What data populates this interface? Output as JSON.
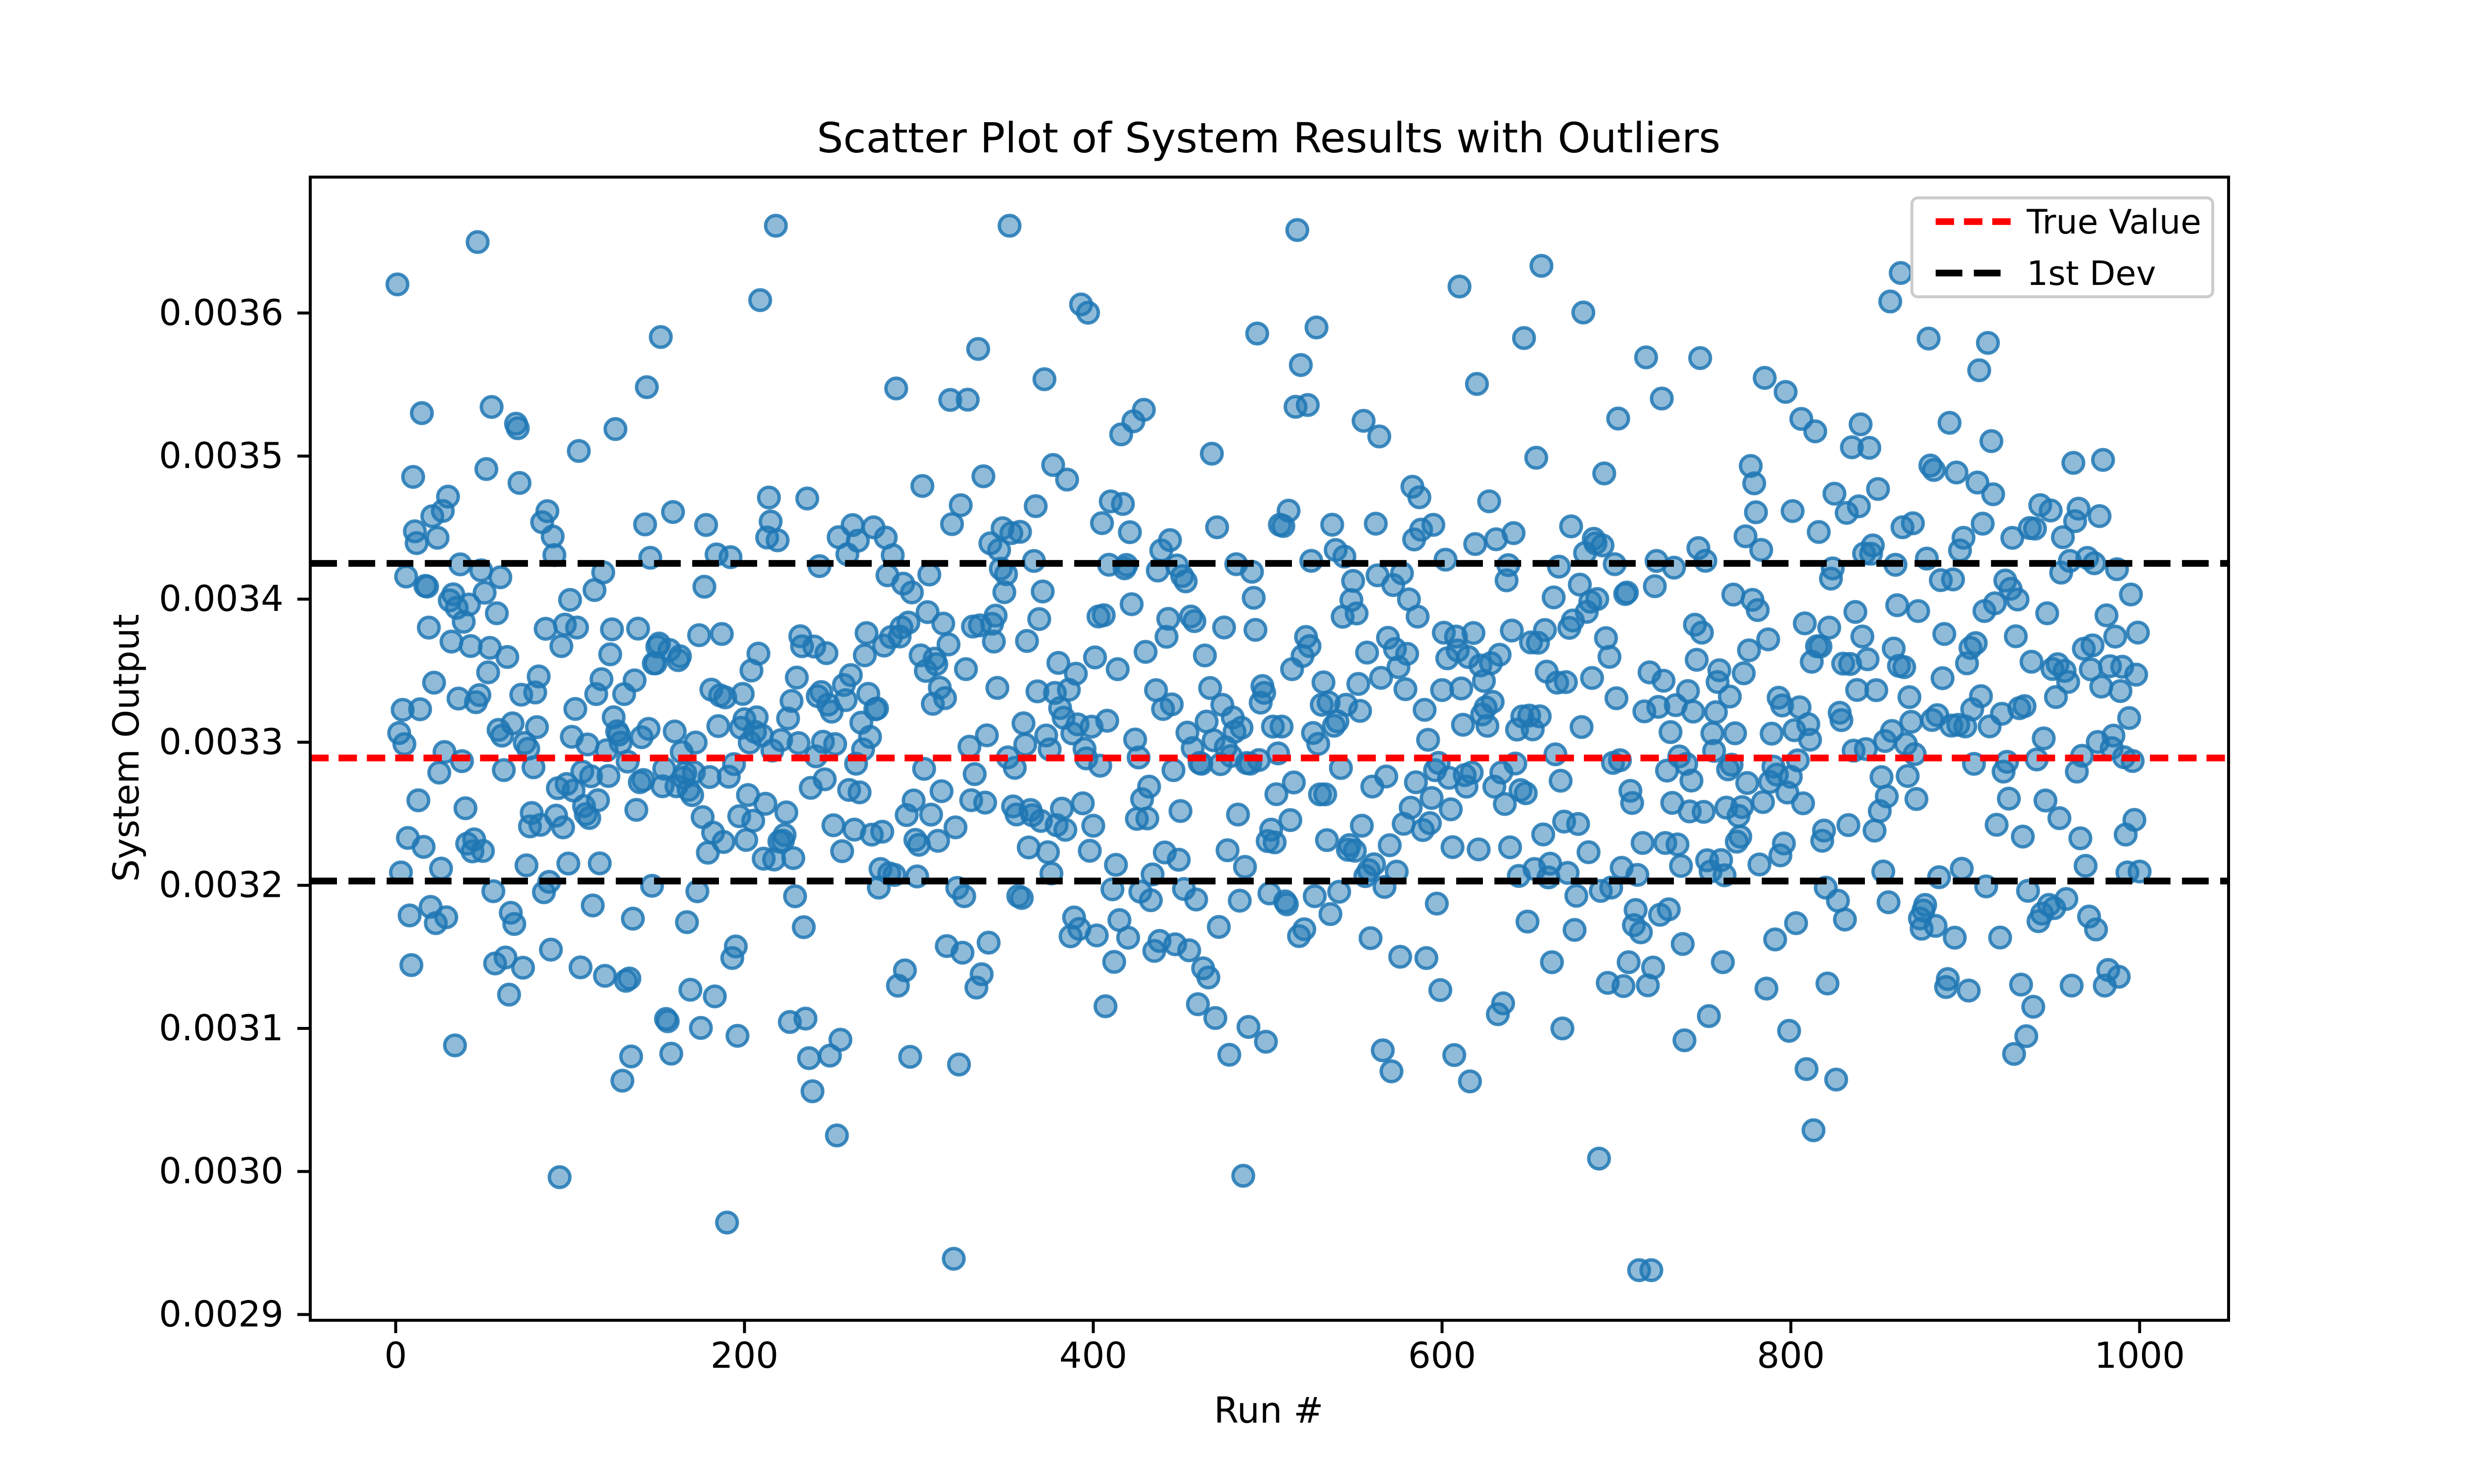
{
  "figure": {
    "background": "#ffffff",
    "axis_color": "#000000"
  },
  "chart_data": {
    "type": "scatter",
    "title": "Scatter Plot of System Results with Outliers",
    "xlabel": "Run #",
    "ylabel": "System Output",
    "xlim": [
      -49,
      1051
    ],
    "ylim": [
      0.002896,
      0.003695
    ],
    "xticks": [
      0,
      200,
      400,
      600,
      800,
      1000
    ],
    "yticks": [
      0.0029,
      0.003,
      0.0031,
      0.0032,
      0.0033,
      0.0034,
      0.0035,
      0.0036
    ],
    "ytick_decimals": 4,
    "grid": false,
    "n_points": 1000,
    "x_start": 1,
    "marker": {
      "shape": "circle",
      "color": "#1f77b4",
      "alpha": 0.6,
      "radius_px": 5.2,
      "edge_color": "#1f77b4"
    },
    "distribution": {
      "kind": "normal",
      "mean": 0.003314,
      "std": 0.000111,
      "seed": 7,
      "clip": [
        0.002931,
        0.003661
      ]
    },
    "outliers": [
      [
        1,
        0.00362
      ],
      [
        94,
        0.002996
      ],
      [
        209,
        0.003609
      ],
      [
        320,
        0.002939
      ],
      [
        393,
        0.003606
      ],
      [
        486,
        0.002997
      ],
      [
        517,
        0.003658
      ],
      [
        690,
        0.003009
      ],
      [
        717,
        0.003569
      ],
      [
        720,
        0.002931
      ],
      [
        863,
        0.003628
      ],
      [
        908,
        0.00356
      ]
    ],
    "lines": [
      {
        "name": "true-value-line",
        "label": "True Value",
        "y": 0.003289,
        "color": "#ff0000",
        "dash": [
          9.3,
          5
        ],
        "width": 3.4
      },
      {
        "name": "dev-upper-line",
        "label": "1st Dev",
        "y": 0.003425,
        "color": "#000000",
        "dash": [
          13.5,
          5.8
        ],
        "width": 3.4
      },
      {
        "name": "dev-lower-line",
        "label": "1st Dev",
        "y": 0.003203,
        "color": "#000000",
        "dash": [
          13.5,
          5.8
        ],
        "width": 3.4
      }
    ],
    "legend": {
      "position": "upper right",
      "entries": [
        {
          "label": "True Value",
          "line": 0
        },
        {
          "label": "1st Dev",
          "line": 1
        }
      ],
      "edge_color": "#cccccc",
      "face_color": "#ffffff"
    }
  }
}
